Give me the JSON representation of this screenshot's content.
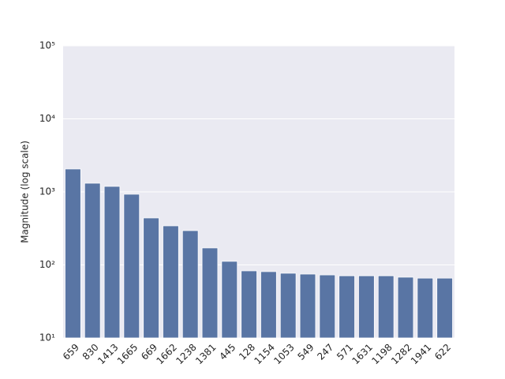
{
  "chart_data": {
    "type": "bar",
    "ylabel": "Magnitude (log scale)",
    "categories": [
      "659",
      "830",
      "1413",
      "1665",
      "669",
      "1662",
      "1238",
      "1381",
      "445",
      "128",
      "1154",
      "1053",
      "549",
      "247",
      "571",
      "1631",
      "1198",
      "1282",
      "1941",
      "622"
    ],
    "values": [
      2060,
      1315,
      1190,
      929,
      440,
      343,
      295,
      171,
      112,
      83,
      81,
      77,
      75,
      73,
      71,
      71,
      71,
      68,
      66,
      66
    ],
    "color": "#5975a4",
    "log_scale": true,
    "grid": true,
    "ylim": [
      10,
      100000
    ],
    "yticks": [
      {
        "value": 10,
        "label": "10¹"
      },
      {
        "value": 100,
        "label": "10²"
      },
      {
        "value": 1000,
        "label": "10³"
      },
      {
        "value": 10000,
        "label": "10⁴"
      },
      {
        "value": 100000,
        "label": "10⁵"
      }
    ]
  }
}
